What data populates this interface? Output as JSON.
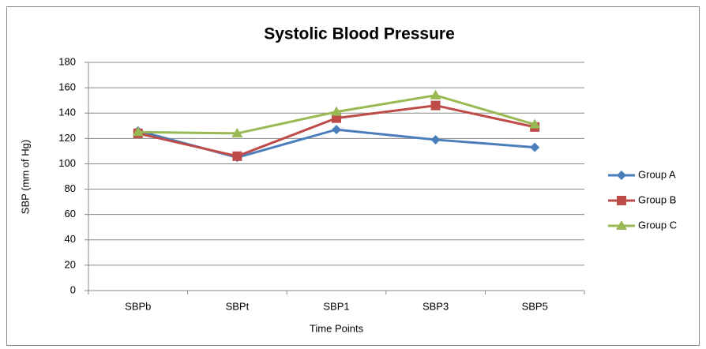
{
  "chart_data": {
    "type": "line",
    "title": "Systolic Blood Pressure",
    "x_label": "Time Points",
    "y_label": "SBP (mm of Hg)",
    "categories": [
      "SBPb",
      "SBPt",
      "SBP1",
      "SBP3",
      "SBP5"
    ],
    "series": [
      {
        "name": "Group A",
        "color": "#4a7ebb",
        "marker": "diamond",
        "values": [
          126,
          105,
          127,
          119,
          113
        ]
      },
      {
        "name": "Group B",
        "color": "#be4b48",
        "marker": "square",
        "values": [
          124,
          106,
          136,
          146,
          129
        ]
      },
      {
        "name": "Group C",
        "color": "#98b954",
        "marker": "triangle",
        "values": [
          125,
          124,
          141,
          154,
          131
        ]
      }
    ],
    "ylim": [
      0,
      180
    ],
    "yticks": [
      0,
      20,
      40,
      60,
      80,
      100,
      120,
      140,
      160,
      180
    ],
    "grid": true,
    "legend": "right"
  }
}
